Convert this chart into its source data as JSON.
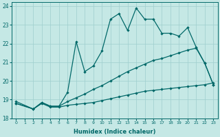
{
  "xlabel": "Humidex (Indice chaleur)",
  "bg_color": "#c5e8e5",
  "grid_color": "#9ecece",
  "line_color": "#006868",
  "xlim": [
    -0.5,
    23.5
  ],
  "ylim": [
    18,
    24.2
  ],
  "xticks": [
    0,
    1,
    2,
    3,
    4,
    5,
    6,
    7,
    8,
    9,
    10,
    11,
    12,
    13,
    14,
    15,
    16,
    17,
    18,
    19,
    20,
    21,
    22,
    23
  ],
  "yticks": [
    18,
    19,
    20,
    21,
    22,
    23,
    24
  ],
  "line1_x": [
    0,
    2,
    3,
    4,
    5,
    6,
    7,
    8,
    9,
    10,
    11,
    12,
    13,
    14,
    15,
    16,
    17,
    18,
    19,
    20,
    21,
    22,
    23
  ],
  "line1_y": [
    18.9,
    18.5,
    18.85,
    18.65,
    18.65,
    19.4,
    22.1,
    20.5,
    20.8,
    21.6,
    23.3,
    23.6,
    22.7,
    23.9,
    23.3,
    23.3,
    22.55,
    22.55,
    22.4,
    22.85,
    21.8,
    20.95,
    19.8
  ],
  "line2_x": [
    0,
    2,
    3,
    4,
    5,
    6,
    7,
    8,
    9,
    10,
    11,
    12,
    13,
    14,
    15,
    16,
    17,
    18,
    19,
    20,
    21,
    22,
    23
  ],
  "line2_y": [
    18.8,
    18.5,
    18.85,
    18.65,
    18.65,
    18.9,
    19.1,
    19.3,
    19.55,
    19.75,
    20.0,
    20.25,
    20.5,
    20.7,
    20.9,
    21.1,
    21.2,
    21.35,
    21.5,
    21.65,
    21.75,
    20.95,
    19.8
  ],
  "line3_x": [
    0,
    2,
    3,
    4,
    5,
    6,
    7,
    8,
    9,
    10,
    11,
    12,
    13,
    14,
    15,
    16,
    17,
    18,
    19,
    20,
    21,
    22,
    23
  ],
  "line3_y": [
    18.8,
    18.5,
    18.8,
    18.6,
    18.6,
    18.7,
    18.75,
    18.8,
    18.85,
    18.95,
    19.05,
    19.15,
    19.25,
    19.35,
    19.45,
    19.5,
    19.55,
    19.6,
    19.65,
    19.7,
    19.75,
    19.8,
    19.9
  ]
}
